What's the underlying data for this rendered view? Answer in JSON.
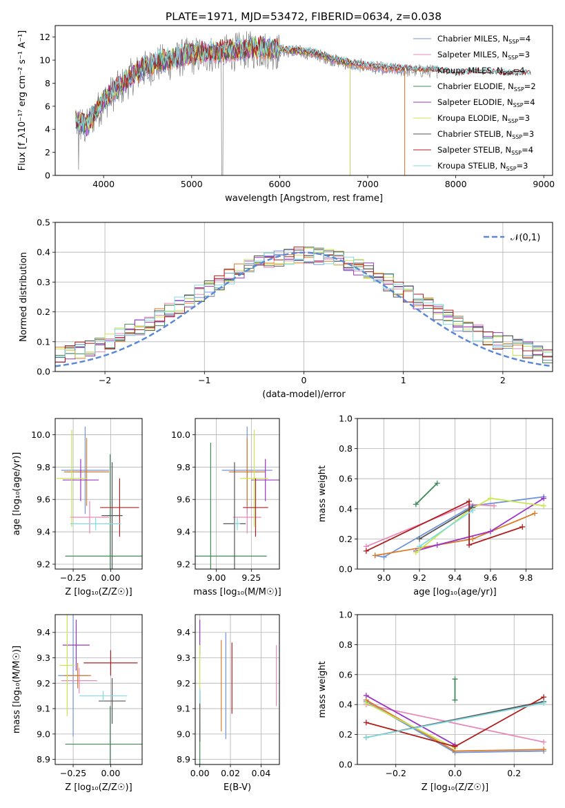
{
  "title": "PLATE=1971, MJD=53472, FIBERID=0634, z=0.038",
  "colors": {
    "Chabrier MILES": "#6f93d8",
    "Salpeter MILES": "#e889b8",
    "Kroupa MILES": "#dd7a26",
    "Chabrier ELODIE": "#3f8a55",
    "Salpeter ELODIE": "#9b33c5",
    "Kroupa ELODIE": "#c8e64d",
    "Chabrier STELIB": "#555555",
    "Salpeter STELIB": "#b01d1d",
    "Kroupa STELIB": "#80dbe2",
    "spectrum": "#7f7f7f",
    "gaussian": "#5b88d6"
  },
  "chart_data": [
    {
      "id": "spectrum",
      "type": "line",
      "xlabel": "wavelength [Angstrom, rest frame]",
      "ylabel": "Flux [f_λ10⁻¹⁷ erg cm⁻² s⁻¹ A⁻¹]",
      "xlim": [
        3450,
        9100
      ],
      "ylim": [
        0,
        13
      ],
      "xticks": [
        4000,
        5000,
        6000,
        7000,
        8000,
        9000
      ],
      "yticks": [
        0,
        2,
        4,
        6,
        8,
        10,
        12
      ],
      "grid": false,
      "legend_position": "top-right",
      "legend": [
        {
          "name": "Chabrier MILES",
          "nssp": "4"
        },
        {
          "name": "Salpeter MILES",
          "nssp": "3"
        },
        {
          "name": "Kroupa MILES",
          "nssp": "4"
        },
        {
          "name": "Chabrier ELODIE",
          "nssp": "2"
        },
        {
          "name": "Salpeter ELODIE",
          "nssp": "4"
        },
        {
          "name": "Kroupa ELODIE",
          "nssp": "3"
        },
        {
          "name": "Chabrier STELIB",
          "nssp": "3"
        },
        {
          "name": "Salpeter STELIB",
          "nssp": "4"
        },
        {
          "name": "Kroupa STELIB",
          "nssp": "3"
        }
      ],
      "continuum": [
        [
          3680,
          5.0
        ],
        [
          3800,
          4.2
        ],
        [
          3900,
          5.5
        ],
        [
          4000,
          6.5
        ],
        [
          4100,
          7.3
        ],
        [
          4200,
          7.8
        ],
        [
          4300,
          8.6
        ],
        [
          4400,
          9.1
        ],
        [
          4500,
          9.5
        ],
        [
          4600,
          9.8
        ],
        [
          4700,
          10.0
        ],
        [
          4800,
          10.1
        ],
        [
          4900,
          10.4
        ],
        [
          5000,
          10.5
        ],
        [
          5200,
          10.7
        ],
        [
          5400,
          10.8
        ],
        [
          5600,
          11.0
        ],
        [
          5800,
          11.1
        ],
        [
          6000,
          10.9
        ],
        [
          6200,
          10.8
        ],
        [
          6400,
          10.6
        ],
        [
          6600,
          10.1
        ],
        [
          6800,
          9.7
        ],
        [
          7000,
          9.5
        ],
        [
          7200,
          9.3
        ],
        [
          7400,
          9.2
        ],
        [
          7600,
          9.1
        ],
        [
          7800,
          9.1
        ],
        [
          8000,
          8.8
        ],
        [
          8200,
          8.9
        ],
        [
          8400,
          8.9
        ],
        [
          8600,
          8.8
        ],
        [
          8850,
          8.8
        ]
      ],
      "model_end": {
        "Kroupa MILES": 7420,
        "Kroupa ELODIE": 6800,
        "Salpeter ELODIE": 6800,
        "Chabrier ELODIE": 6800,
        "Salpeter MILES": 7420,
        "Chabrier MILES": 7420
      },
      "data_end": 7800
    },
    {
      "id": "residual-histogram",
      "type": "bar",
      "xlabel": "(data-model)/error",
      "ylabel": "Normed distribution",
      "xlim": [
        -2.5,
        2.5
      ],
      "ylim": [
        0,
        0.5
      ],
      "xticks": [
        -2,
        -1,
        0,
        1,
        2
      ],
      "yticks": [
        0.0,
        0.1,
        0.2,
        0.3,
        0.4,
        0.5
      ],
      "grid": true,
      "legend_position": "top-right",
      "gaussian_label": "𝒩(0,1)",
      "bin_width": 0.1,
      "bin_start": -2.5
    },
    {
      "id": "age-vs-Z",
      "type": "scatter",
      "xlabel": "Z [log₁₀(Z/Z☉)]",
      "ylabel": "age  [log₁₀(age/yr)]",
      "xlim": [
        -0.37,
        0.21
      ],
      "ylim": [
        9.17,
        10.1
      ],
      "xticks": [
        -0.25,
        0.0
      ],
      "yticks": [
        9.2,
        9.4,
        9.6,
        9.8,
        10.0
      ],
      "grid": true,
      "errorbars": [
        {
          "series": "Chabrier MILES",
          "x": -0.17,
          "xerr": 0.16,
          "y": 9.78,
          "yerr": 0.27
        },
        {
          "series": "Salpeter MILES",
          "x": -0.14,
          "xerr": 0.13,
          "y": 9.49,
          "yerr": 0.1
        },
        {
          "series": "Kroupa MILES",
          "x": -0.16,
          "xerr": 0.15,
          "y": 9.77,
          "yerr": 0.21
        },
        {
          "series": "Chabrier ELODIE",
          "x": -0.003,
          "xerr": 0.3,
          "y": 9.25,
          "yerr": 0.63
        },
        {
          "series": "Salpeter ELODIE",
          "x": -0.2,
          "xerr": 0.12,
          "y": 9.72,
          "yerr": 0.13
        },
        {
          "series": "Kroupa ELODIE",
          "x": -0.26,
          "xerr": 0.1,
          "y": 9.73,
          "yerr": 0.3
        },
        {
          "series": "Chabrier STELIB",
          "x": 0.01,
          "xerr": 0.07,
          "y": 9.5,
          "yerr": 0.33
        },
        {
          "series": "Salpeter STELIB",
          "x": 0.06,
          "xerr": 0.13,
          "y": 9.55,
          "yerr": 0.18
        },
        {
          "series": "Kroupa STELIB",
          "x": -0.1,
          "xerr": 0.17,
          "y": 9.45,
          "yerr": 0.04
        }
      ]
    },
    {
      "id": "age-vs-mass",
      "type": "scatter",
      "xlabel": "mass [log₁₀(M/M☉)]",
      "ylabel": "",
      "xlim": [
        8.85,
        9.45
      ],
      "ylim": [
        9.17,
        10.1
      ],
      "xticks": [
        9.0,
        9.25
      ],
      "yticks": [
        9.2,
        9.4,
        9.6,
        9.8,
        10.0
      ],
      "grid": true,
      "errorbars": [
        {
          "series": "Chabrier MILES",
          "x": 9.22,
          "xerr": 0.18,
          "y": 9.78,
          "yerr": 0.27
        },
        {
          "series": "Salpeter MILES",
          "x": 9.22,
          "xerr": 0.1,
          "y": 9.49,
          "yerr": 0.1
        },
        {
          "series": "Kroupa MILES",
          "x": 9.22,
          "xerr": 0.13,
          "y": 9.77,
          "yerr": 0.21
        },
        {
          "series": "Chabrier ELODIE",
          "x": 8.96,
          "xerr": 0.4,
          "y": 9.25,
          "yerr": 0.7
        },
        {
          "series": "Salpeter ELODIE",
          "x": 9.35,
          "xerr": 0.1,
          "y": 9.72,
          "yerr": 0.13
        },
        {
          "series": "Kroupa ELODIE",
          "x": 9.27,
          "xerr": 0.1,
          "y": 9.73,
          "yerr": 0.3
        },
        {
          "series": "Chabrier STELIB",
          "x": 9.13,
          "xerr": 0.08,
          "y": 9.45,
          "yerr": 0.38
        },
        {
          "series": "Salpeter STELIB",
          "x": 9.28,
          "xerr": 0.09,
          "y": 9.55,
          "yerr": 0.18
        },
        {
          "series": "Kroupa STELIB",
          "x": 9.15,
          "xerr": 0.02,
          "y": 9.45,
          "yerr": 0.04
        }
      ]
    },
    {
      "id": "mass-weight-vs-age",
      "type": "line",
      "xlabel": "age  [log₁₀(age/yr)]",
      "ylabel": "mass weight",
      "xlim": [
        8.85,
        9.95
      ],
      "ylim": [
        0,
        1.0
      ],
      "xticks": [
        9.0,
        9.2,
        9.4,
        9.6,
        9.8
      ],
      "yticks": [
        0.0,
        0.2,
        0.4,
        0.6,
        0.8,
        1.0
      ],
      "grid": true,
      "series": [
        {
          "name": "Chabrier MILES",
          "x": [
            8.95,
            9.0,
            9.5,
            9.9
          ],
          "y": [
            0.09,
            0.08,
            0.42,
            0.48
          ]
        },
        {
          "name": "Salpeter MILES",
          "x": [
            8.9,
            9.48,
            9.62
          ],
          "y": [
            0.15,
            0.43,
            0.42
          ]
        },
        {
          "name": "Kroupa MILES",
          "x": [
            8.95,
            9.5,
            9.85
          ],
          "y": [
            0.09,
            0.2,
            0.37
          ]
        },
        {
          "name": "Chabrier ELODIE",
          "x": [
            9.18,
            9.3
          ],
          "y": [
            0.43,
            0.57
          ]
        },
        {
          "name": "Salpeter ELODIE",
          "x": [
            9.18,
            9.3,
            9.6,
            9.9
          ],
          "y": [
            0.12,
            0.16,
            0.25,
            0.47
          ]
        },
        {
          "name": "Kroupa ELODIE",
          "x": [
            9.18,
            9.48,
            9.6,
            9.9
          ],
          "y": [
            0.11,
            0.39,
            0.47,
            0.42
          ]
        },
        {
          "name": "Chabrier STELIB",
          "x": [
            9.2,
            9.5
          ],
          "y": [
            0.2,
            0.41
          ]
        },
        {
          "name": "Salpeter STELIB",
          "x": [
            8.9,
            9.48,
            9.48,
            9.78
          ],
          "y": [
            0.12,
            0.45,
            0.16,
            0.28
          ]
        },
        {
          "name": "Kroupa STELIB",
          "x": [
            9.2,
            9.5
          ],
          "y": [
            0.15,
            0.39
          ]
        }
      ]
    },
    {
      "id": "mass-vs-Z",
      "type": "scatter",
      "xlabel": "Z [log₁₀(Z/Z☉)]",
      "ylabel": "mass [log₁₀(M/M☉)]",
      "xlim": [
        -0.37,
        0.21
      ],
      "ylim": [
        8.88,
        9.47
      ],
      "xticks": [
        -0.25,
        0.0
      ],
      "yticks": [
        8.9,
        9.0,
        9.1,
        9.2,
        9.3,
        9.4
      ],
      "grid": true,
      "errorbars": [
        {
          "series": "Chabrier MILES",
          "x": -0.25,
          "xerr": 0.1,
          "y": 9.23,
          "yerr": 0.24
        },
        {
          "series": "Salpeter MILES",
          "x": -0.21,
          "xerr": 0.12,
          "y": 9.21,
          "yerr": 0.05
        },
        {
          "series": "Kroupa MILES",
          "x": -0.22,
          "xerr": 0.09,
          "y": 9.23,
          "yerr": 0.05
        },
        {
          "series": "Chabrier ELODIE",
          "x": -0.003,
          "xerr": 0.3,
          "y": 8.96,
          "yerr": 0.15
        },
        {
          "series": "Salpeter ELODIE",
          "x": -0.23,
          "xerr": 0.09,
          "y": 9.35,
          "yerr": 0.1
        },
        {
          "series": "Kroupa ELODIE",
          "x": -0.29,
          "xerr": 0.05,
          "y": 9.27,
          "yerr": 0.2
        },
        {
          "series": "Chabrier STELIB",
          "x": 0.01,
          "xerr": 0.09,
          "y": 9.13,
          "yerr": 0.09
        },
        {
          "series": "Salpeter STELIB",
          "x": 0.0,
          "xerr": 0.18,
          "y": 9.28,
          "yerr": 0.05
        },
        {
          "series": "Kroupa STELIB",
          "x": -0.05,
          "xerr": 0.16,
          "y": 9.15,
          "yerr": 0.02
        }
      ]
    },
    {
      "id": "mass-vs-ebv",
      "type": "scatter",
      "xlabel": "E(B-V)",
      "ylabel": "",
      "xlim": [
        -0.003,
        0.052
      ],
      "ylim": [
        8.88,
        9.47
      ],
      "xticks": [
        0.0,
        0.02,
        0.04
      ],
      "yticks": [
        8.9,
        9.0,
        9.1,
        9.2,
        9.3,
        9.4
      ],
      "grid": true,
      "errorbars": [
        {
          "series": "Chabrier MILES",
          "x": 0.017,
          "xerr": 0,
          "y": 9.19,
          "yerr": 0.21
        },
        {
          "series": "Salpeter MILES",
          "x": 0.05,
          "xerr": 0,
          "y": 9.23,
          "yerr": 0.12
        },
        {
          "series": "Kroupa MILES",
          "x": 0.014,
          "xerr": 0,
          "y": 9.19,
          "yerr": 0.18
        },
        {
          "series": "Chabrier ELODIE",
          "x": 0.0,
          "xerr": 0,
          "y": 9.0,
          "yerr": 0.12
        },
        {
          "series": "Salpeter ELODIE",
          "x": 0.0,
          "xerr": 0,
          "y": 9.38,
          "yerr": 0.07
        },
        {
          "series": "Kroupa ELODIE",
          "x": 0.0,
          "xerr": 0,
          "y": 9.2,
          "yerr": 0.15
        },
        {
          "series": "Chabrier STELIB",
          "x": 0.0,
          "xerr": 0,
          "y": 9.07,
          "yerr": 0.1
        },
        {
          "series": "Salpeter STELIB",
          "x": 0.021,
          "xerr": 0,
          "y": 9.22,
          "yerr": 0.14
        },
        {
          "series": "Kroupa STELIB",
          "x": 0.0,
          "xerr": 0,
          "y": 9.15,
          "yerr": 0.03
        }
      ]
    },
    {
      "id": "mass-weight-vs-Z",
      "type": "line",
      "xlabel": "Z [log₁₀(Z/Z☉)]",
      "ylabel": "mass weight",
      "xlim": [
        -0.33,
        0.33
      ],
      "ylim": [
        0,
        1.0
      ],
      "xticks": [
        -0.2,
        0.0,
        0.2
      ],
      "yticks": [
        0.0,
        0.2,
        0.4,
        0.6,
        0.8,
        1.0
      ],
      "grid": true,
      "series": [
        {
          "name": "Chabrier MILES",
          "x": [
            -0.3,
            0.0,
            0.3
          ],
          "y": [
            0.42,
            0.08,
            0.09
          ]
        },
        {
          "name": "Salpeter MILES",
          "x": [
            -0.3,
            0.3
          ],
          "y": [
            0.4,
            0.15
          ]
        },
        {
          "name": "Kroupa MILES",
          "x": [
            -0.3,
            0.0,
            0.3
          ],
          "y": [
            0.43,
            0.09,
            0.1
          ]
        },
        {
          "name": "Chabrier ELODIE",
          "x": [
            0.0,
            0.0
          ],
          "y": [
            0.43,
            0.57
          ]
        },
        {
          "name": "Salpeter ELODIE",
          "x": [
            -0.3,
            0.0
          ],
          "y": [
            0.46,
            0.13
          ]
        },
        {
          "name": "Kroupa ELODIE",
          "x": [
            -0.3,
            0.0
          ],
          "y": [
            0.41,
            0.11
          ]
        },
        {
          "name": "Chabrier STELIB",
          "x": [
            -0.3,
            0.3
          ],
          "y": [
            0.18,
            0.42
          ]
        },
        {
          "name": "Salpeter STELIB",
          "x": [
            -0.3,
            0.0,
            0.3
          ],
          "y": [
            0.28,
            0.12,
            0.45
          ]
        },
        {
          "name": "Kroupa STELIB",
          "x": [
            -0.3,
            0.3
          ],
          "y": [
            0.18,
            0.41
          ]
        }
      ]
    }
  ]
}
